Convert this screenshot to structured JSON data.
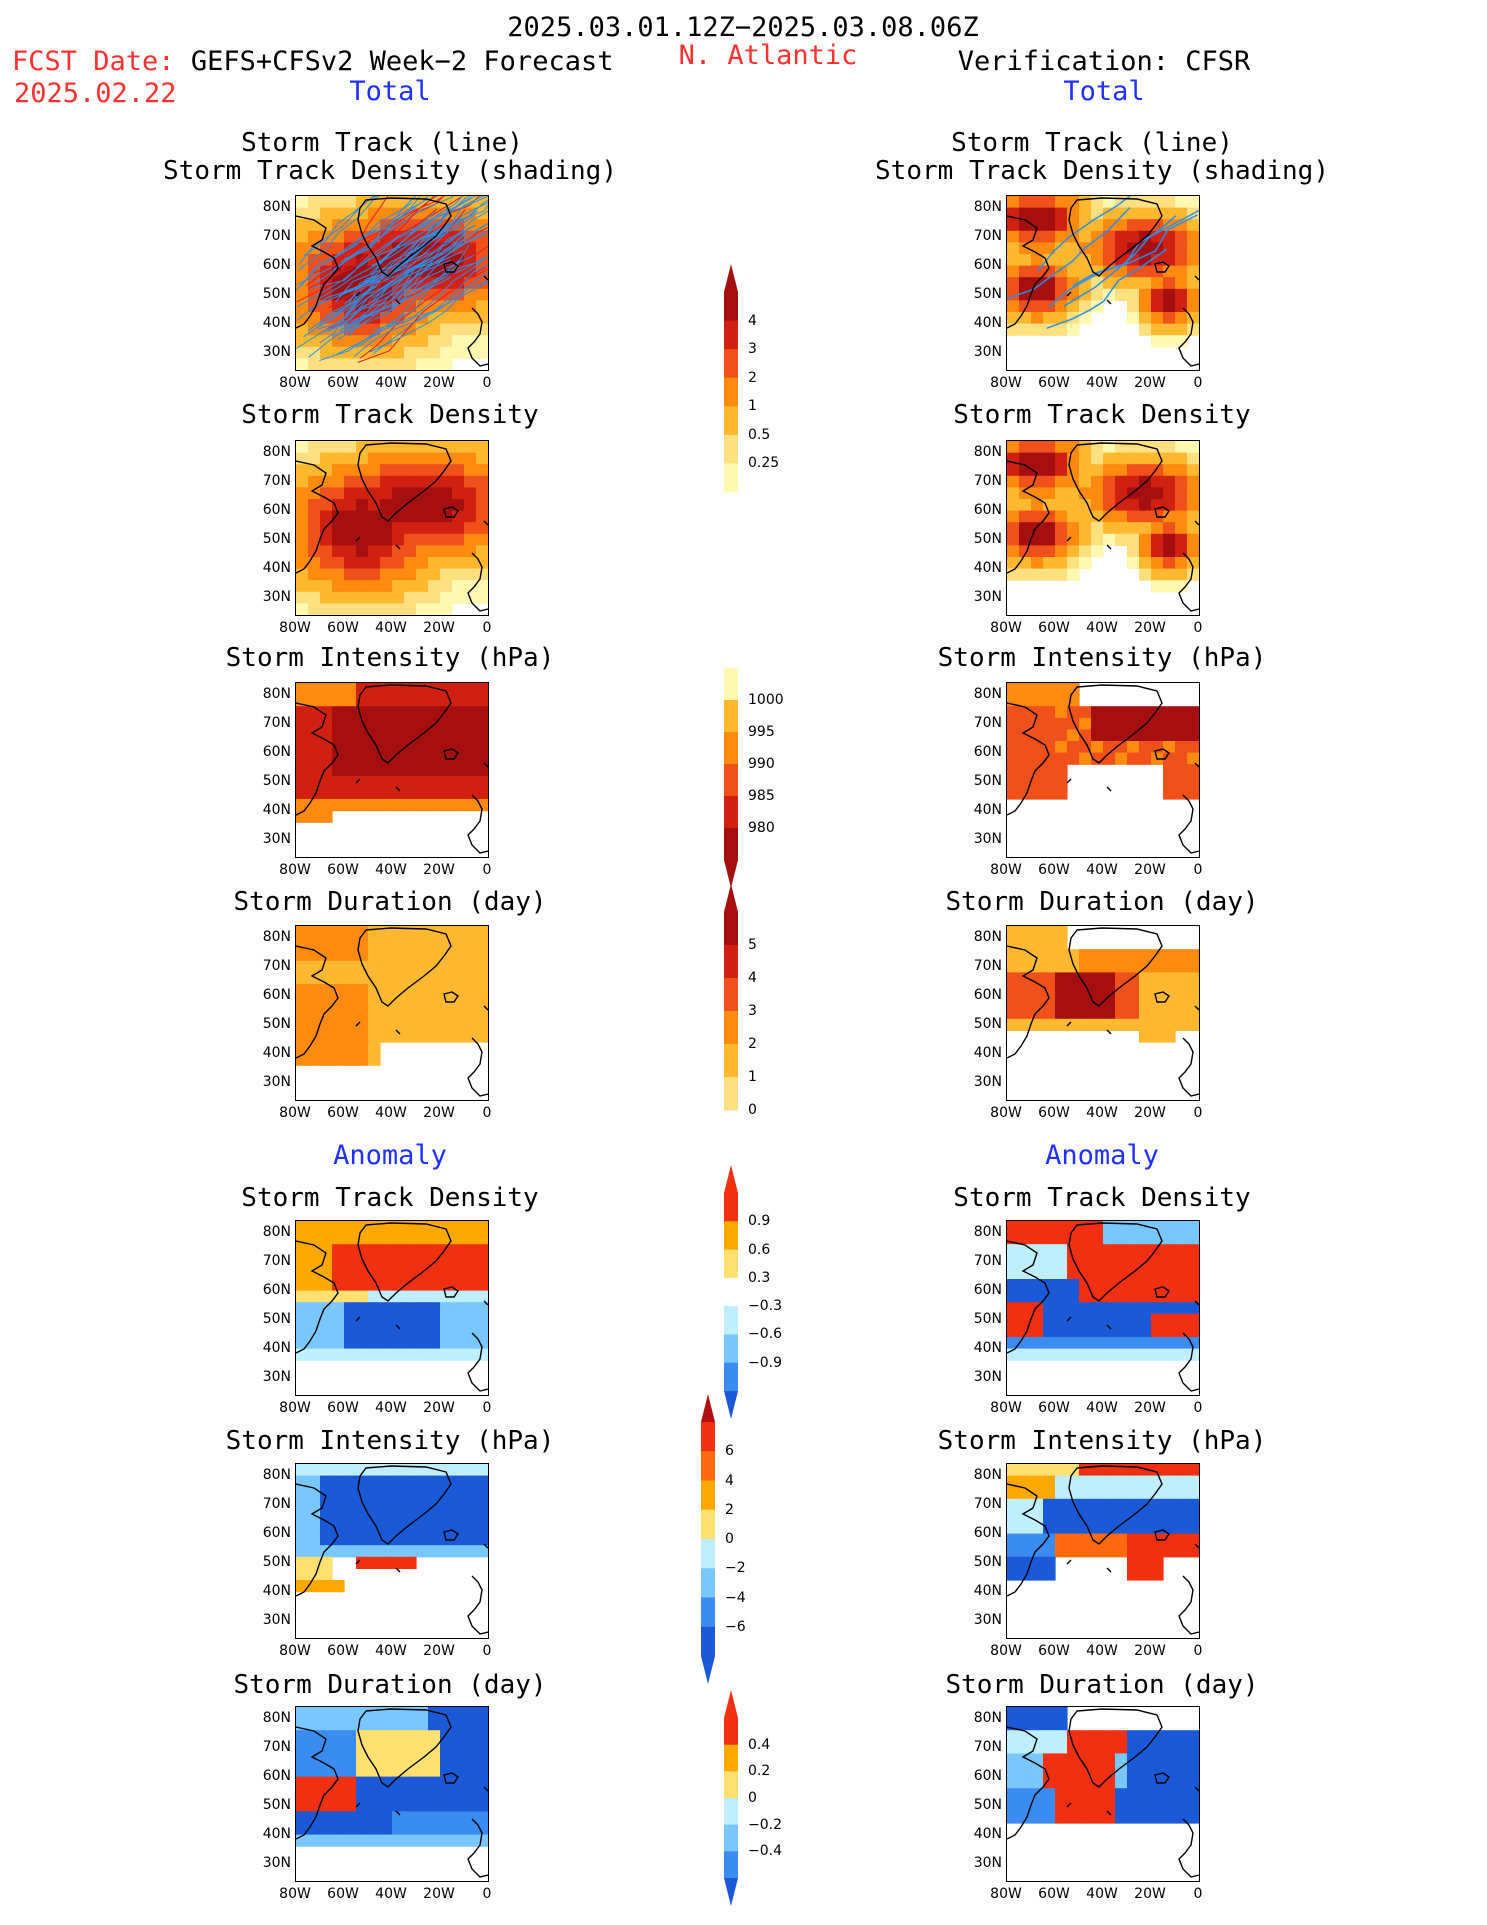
{
  "header": {
    "date_range": "2025.03.01.12Z−2025.03.08.06Z",
    "fcst_label": "FCST Date:",
    "fcst_model": "GEFS+CFSv2 Week−2 Forecast",
    "fcst_date": "2025.02.22",
    "region": "N. Atlantic",
    "verification": "Verification: CFSR",
    "left_section": "Total",
    "right_section": "Total",
    "left_anom": "Anomaly",
    "right_anom": "Anomaly"
  },
  "titles": {
    "track_line": "Storm Track (line)",
    "track_density_shading": "Storm Track Density (shading)",
    "track_density": "Storm Track Density",
    "intensity": "Storm Intensity (hPa)",
    "duration": "Storm Duration (day)"
  },
  "axes": {
    "lat": [
      "80N",
      "70N",
      "60N",
      "50N",
      "40N",
      "30N"
    ],
    "lon": [
      "80W",
      "60W",
      "40W",
      "20W",
      "0"
    ]
  },
  "colorbars": {
    "density": [
      "4",
      "3",
      "2",
      "1",
      "0.5",
      "0.25"
    ],
    "intensity": [
      "1000",
      "995",
      "990",
      "985",
      "980"
    ],
    "duration": [
      "5",
      "4",
      "3",
      "2",
      "1",
      "0"
    ],
    "density_anom": [
      "0.9",
      "0.6",
      "0.3",
      "−0.3",
      "−0.6",
      "−0.9"
    ],
    "intensity_anom": [
      "6",
      "4",
      "2",
      "0",
      "−2",
      "−4",
      "−6"
    ],
    "duration_anom": [
      "0.4",
      "0.2",
      "0",
      "−0.2",
      "−0.4"
    ]
  },
  "colors": {
    "warm": [
      "#fff8b0",
      "#ffe080",
      "#ffb830",
      "#ff8a10",
      "#f0501a",
      "#d02010",
      "#a50f0f"
    ],
    "anom_warm": [
      "#ffe070",
      "#ffa800",
      "#ff6a10",
      "#f03010"
    ],
    "anom_cool": [
      "#bfefff",
      "#78c8ff",
      "#3a8cf0",
      "#1a5ad8"
    ],
    "track_line": "#2a90e8"
  }
}
